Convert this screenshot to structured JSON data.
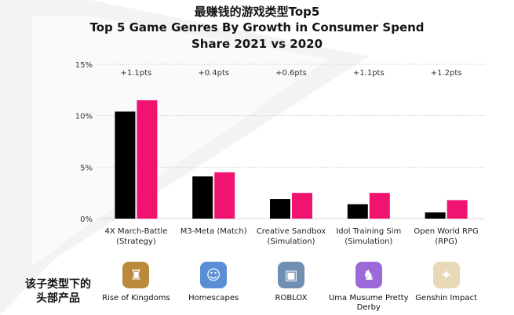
{
  "title_lines": [
    "最赚钱的游戏类型Top5",
    "Top 5 Game Genres By Growth in Consumer Spend",
    "Share 2021 vs 2020"
  ],
  "chart_data": {
    "type": "bar",
    "title": "Top 5 Game Genres By Growth in Consumer Spend Share 2021 vs 2020",
    "categories": [
      [
        "4X March-Battle",
        "(Strategy)"
      ],
      [
        "M3-Meta (Match)"
      ],
      [
        "Creative Sandbox",
        "(Simulation)"
      ],
      [
        "Idol Training Sim",
        "(Simulation)"
      ],
      [
        "Open World RPG",
        "(RPG)"
      ]
    ],
    "series": [
      {
        "values": [
          10.4,
          4.1,
          1.9,
          1.4,
          0.6
        ],
        "color": "#000000"
      },
      {
        "values": [
          11.5,
          4.5,
          2.5,
          2.5,
          1.8
        ],
        "color": "#f0136f"
      }
    ],
    "growth_labels": [
      "+1.1pts",
      "+0.4pts",
      "+0.6pts",
      "+1.1pts",
      "+1.2pts"
    ],
    "ylim": [
      0,
      15
    ],
    "yticks": [
      0,
      5,
      10,
      15
    ],
    "ytick_labels": [
      "0%",
      "5%",
      "10%",
      "15%"
    ],
    "grid": true,
    "legend": "none"
  },
  "side_label": [
    "该子类型下的",
    "头部产品"
  ],
  "apps": [
    {
      "name": "Rise of Kingdoms",
      "icon": "rise-of-kingdoms-icon",
      "color": "#b98a3c",
      "glyph": "♜"
    },
    {
      "name": "Homescapes",
      "icon": "homescapes-icon",
      "color": "#5a8fd6",
      "glyph": "☺"
    },
    {
      "name": "ROBLOX",
      "icon": "roblox-icon",
      "color": "#6f8fb3",
      "glyph": "▣"
    },
    {
      "name": "Uma Musume Pretty Derby",
      "icon": "uma-musume-icon",
      "color": "#9b6ad8",
      "glyph": "♞"
    },
    {
      "name": "Genshin Impact",
      "icon": "genshin-impact-icon",
      "color": "#e8d9b8",
      "glyph": "✦"
    }
  ]
}
